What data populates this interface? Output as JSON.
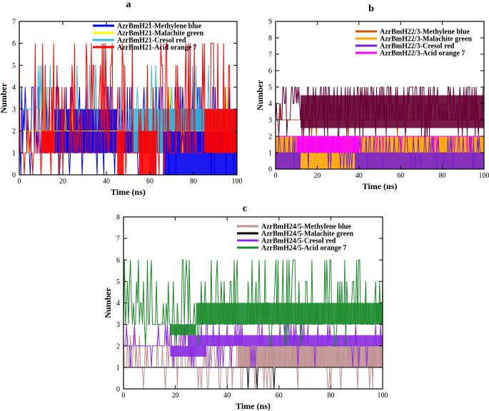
{
  "chart_data": [
    {
      "type": "line",
      "panel": "a",
      "xlabel": "Time (ns)",
      "ylabel": "Number",
      "xlim": [
        0,
        100
      ],
      "ylim": [
        0,
        7
      ],
      "xticks": [
        0,
        20,
        40,
        60,
        80,
        100
      ],
      "yticks": [
        0,
        1,
        2,
        3,
        4,
        5,
        6,
        7
      ],
      "legend_position": "top-right",
      "series": [
        {
          "name": "AzrBmH21-Methylene blue",
          "color": "#0000ee",
          "base": 1,
          "max": 4,
          "density": 0.7,
          "blocks": [
            [
              16,
              45,
              1,
              3
            ],
            [
              47,
              52,
              1,
              2
            ],
            [
              52,
              66,
              1,
              2
            ],
            [
              66,
              100,
              0,
              3
            ]
          ]
        },
        {
          "name": "AzrBmH21-Malachite green",
          "color": "#ffff00",
          "base": 2,
          "max": 4,
          "density": 0.1,
          "blocks": []
        },
        {
          "name": "AzrBmH21-Cresol red",
          "color": "#33bbdd",
          "base": 3,
          "max": 5,
          "density": 0.25,
          "blocks": [
            [
              52,
              66,
              1,
              3
            ],
            [
              66,
              100,
              2,
              3
            ]
          ]
        },
        {
          "name": "AzrBmH21-Acid orange 7",
          "color": "#ff0000",
          "base": 1,
          "max": 6,
          "density": 0.45,
          "blocks": [
            [
              10,
              16,
              1,
              2
            ],
            [
              45,
              48,
              0,
              2
            ],
            [
              55,
              63,
              0,
              2
            ],
            [
              85,
              100,
              1,
              3
            ]
          ]
        }
      ]
    },
    {
      "type": "line",
      "panel": "b",
      "xlabel": "Time (ns)",
      "ylabel": "Number",
      "xlim": [
        0,
        100
      ],
      "ylim": [
        0,
        9
      ],
      "xticks": [
        0,
        20,
        40,
        60,
        80,
        100
      ],
      "yticks": [
        0,
        1,
        2,
        3,
        4,
        5,
        6,
        7,
        8,
        9
      ],
      "legend_position": "top-right",
      "series": [
        {
          "name": "AzrBmH22/3-Methylene blue",
          "color": "#cc5500",
          "base": 3,
          "max": 4,
          "density": 0.1,
          "blocks": []
        },
        {
          "name": "AzrBmH22/3-Malachite green",
          "color": "#ffa500",
          "base": 1,
          "max": 2,
          "density": 0.5,
          "blocks": [
            [
              0,
              100,
              0,
              2
            ]
          ]
        },
        {
          "name": "AzrBmH22/3-Cresol red",
          "color": "#7722cc",
          "base": 1,
          "max": 2,
          "density": 0.45,
          "blocks": [
            [
              0,
              12,
              0,
              1
            ],
            [
              38,
              100,
              0,
              1
            ]
          ]
        },
        {
          "name": "AzrBmH22/3-Acid orange 7",
          "color": "#ff00ff",
          "base": 2,
          "max": 2,
          "density": 0.3,
          "blocks": [
            [
              10,
              40,
              1,
              2
            ]
          ]
        },
        {
          "name": "",
          "color": "#660033",
          "base": 3,
          "max": 5,
          "density": 0.8,
          "blocks": [
            [
              12,
              100,
              2.5,
              4.5
            ]
          ]
        }
      ]
    },
    {
      "type": "line",
      "panel": "c",
      "xlabel": "Time (ns)",
      "ylabel": "Number",
      "xlim": [
        0,
        100
      ],
      "ylim": [
        0,
        8
      ],
      "xticks": [
        0,
        20,
        40,
        60,
        80,
        100
      ],
      "yticks": [
        0,
        1,
        2,
        3,
        4,
        5,
        6,
        7,
        8
      ],
      "legend_position": "top-right",
      "series": [
        {
          "name": "AzrBmH24/5-Methylene blue",
          "color": "#c09090",
          "base": 1,
          "max": 2.5,
          "density": 0.6,
          "blocks": [
            [
              44,
              100,
              1,
              2
            ]
          ]
        },
        {
          "name": "AzrBmH24/5-Malachite green",
          "color": "#000000",
          "base": 1,
          "max": 1,
          "density": 0.02,
          "blocks": []
        },
        {
          "name": "AzrBmH24/5-Cresol red",
          "color": "#8a2be2",
          "base": 2,
          "max": 3,
          "density": 0.3,
          "blocks": [
            [
              18,
              32,
              1.5,
              2
            ],
            [
              25,
              100,
              2,
              2.5
            ]
          ]
        },
        {
          "name": "AzrBmH24/5-Acid orange 7",
          "color": "#1a8a2a",
          "base": 3,
          "max": 6,
          "density": 0.55,
          "blocks": [
            [
              18,
              28,
              2.5,
              3
            ],
            [
              28,
              100,
              3,
              4
            ]
          ]
        }
      ]
    }
  ]
}
